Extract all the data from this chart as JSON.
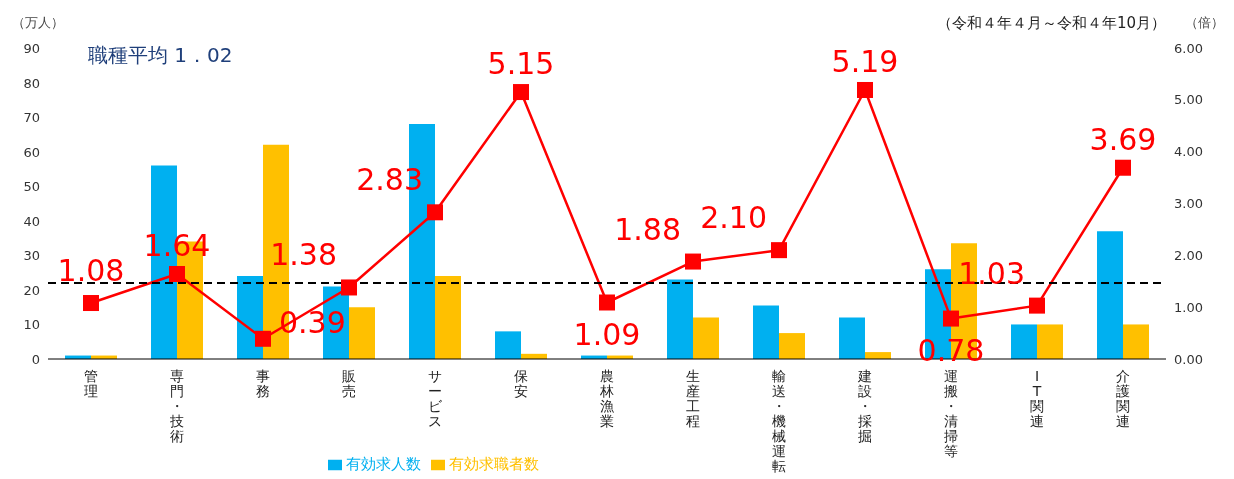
{
  "chart_data": {
    "type": "bar",
    "subtitle": "（令和４年４月～令和４年10月）",
    "ylabel": "（万人）",
    "y2label": "（倍）",
    "annotations": [
      "職種平均 1．02"
    ],
    "categories": [
      "管理",
      "専門・技術",
      "事務",
      "販売",
      "サービス",
      "保安",
      "農林漁業",
      "生産工程",
      "輸送・機械運転",
      "建設・採掘",
      "運搬・清掃等",
      "IT関連",
      "介護関連"
    ],
    "series": [
      {
        "name": "有効求人数",
        "color": "#00b0f0",
        "values": [
          1,
          56,
          24,
          21,
          68,
          8,
          1,
          23,
          15.5,
          12,
          26,
          10,
          37
        ]
      },
      {
        "name": "有効求職者数",
        "color": "#ffc000",
        "values": [
          1,
          34,
          62,
          15,
          24,
          1.5,
          1,
          12,
          7.5,
          2,
          33.5,
          10,
          10
        ]
      },
      {
        "type": "line",
        "axis": "y2",
        "color": "#ff0000",
        "marker": "square",
        "values": [
          1.08,
          1.64,
          0.39,
          1.38,
          2.83,
          5.15,
          1.09,
          1.88,
          2.1,
          5.19,
          0.78,
          1.03,
          3.69
        ],
        "value_labels": [
          "1.08",
          "1.64",
          "0.39",
          "1.38",
          "2.83",
          "5.15",
          "1.09",
          "1.88",
          "2.10",
          "5.19",
          "0.78",
          "1.03",
          "3.69"
        ]
      }
    ],
    "ylim": [
      0,
      90
    ],
    "yticks": [
      0,
      10,
      20,
      30,
      40,
      50,
      60,
      70,
      80,
      90
    ],
    "y2lim": [
      0,
      6
    ],
    "y2ticks": [
      {
        "value": 0,
        "label": "0.00"
      },
      {
        "value": 1,
        "label": "1.00"
      },
      {
        "value": 2,
        "label": "2.00"
      },
      {
        "value": 3,
        "label": "3.00"
      },
      {
        "value": 4,
        "label": "4.00"
      },
      {
        "value": 5,
        "label": "5.00"
      },
      {
        "value": 6,
        "label": "6.00"
      }
    ],
    "ref_lines": [
      {
        "axis": "y",
        "value": 22,
        "color": "#000000",
        "line_style": "dashed"
      }
    ],
    "grid": false,
    "legend": "bottom"
  }
}
